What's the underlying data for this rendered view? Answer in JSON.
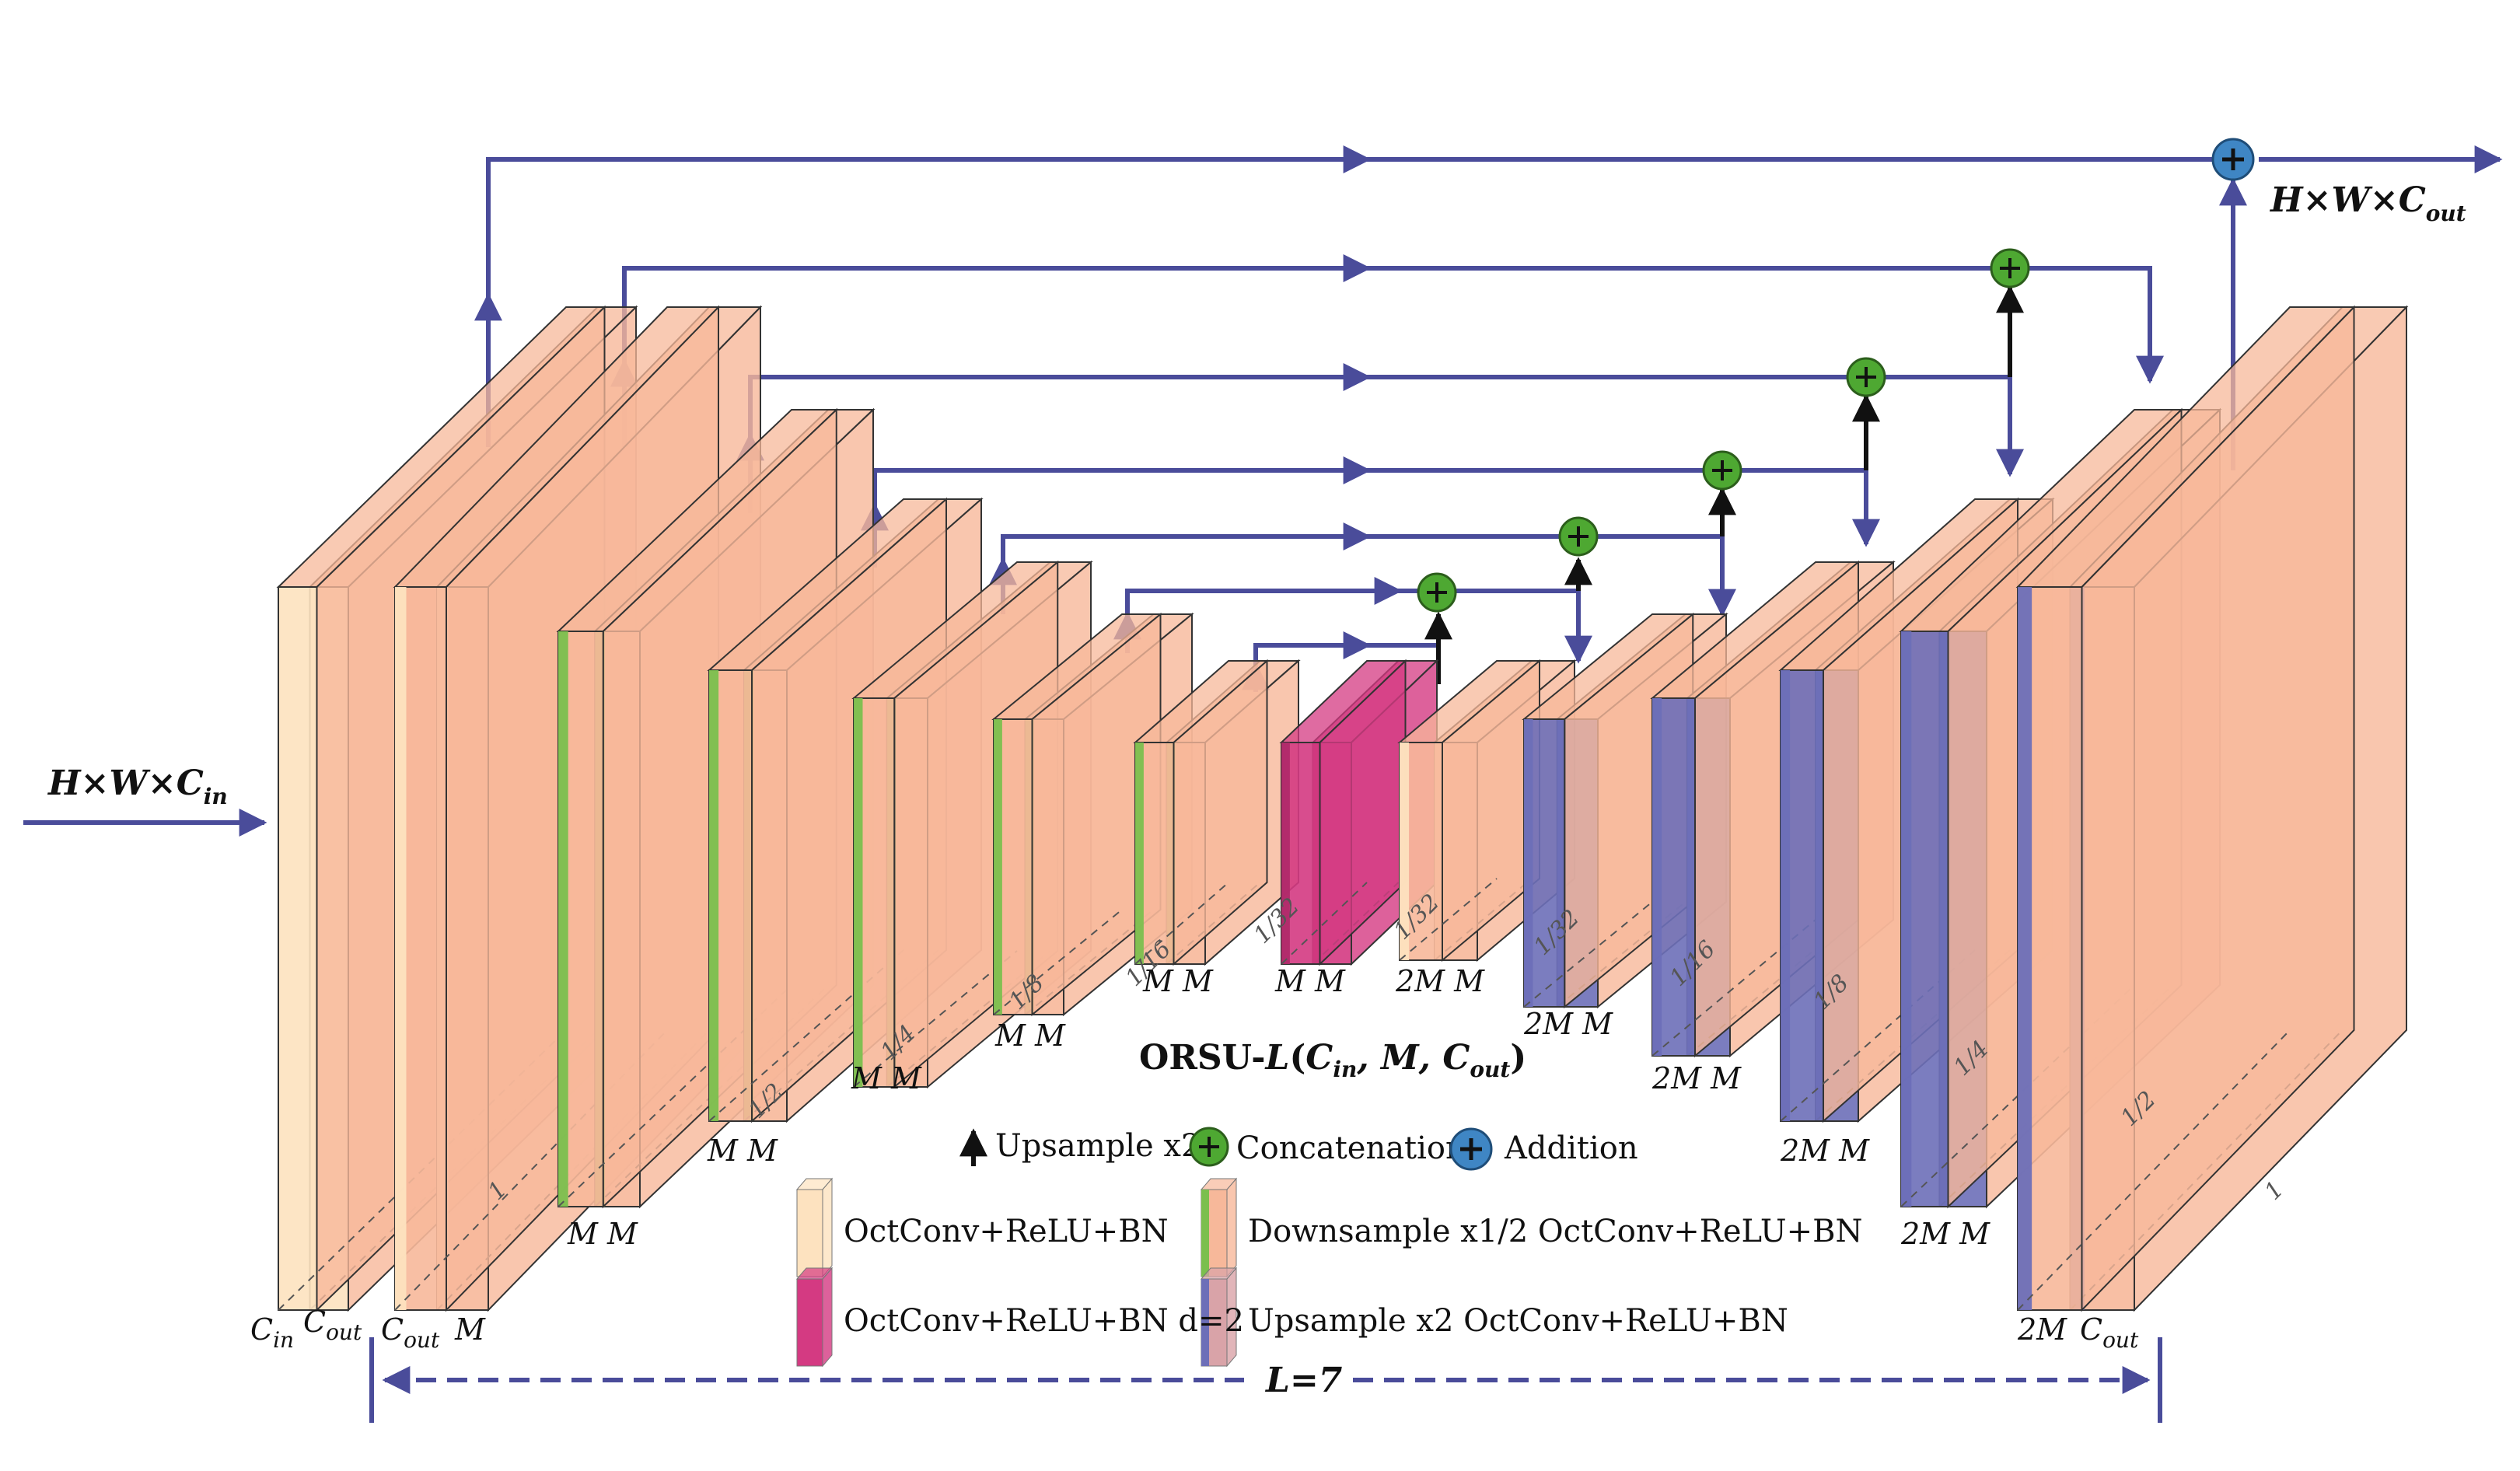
{
  "input_label": {
    "main": "H×W×C",
    "sub": "in"
  },
  "output_label": {
    "main": "H×W×C",
    "sub": "out"
  },
  "title": {
    "prefix": "ORSU-",
    "L": "L",
    "args_open": "(",
    "cin": "C",
    "cin_sub": "in",
    "m": ", M, ",
    "cout": "C",
    "cout_sub": "out",
    "args_close": ")"
  },
  "span_label": "L=7",
  "layer_labels": {
    "in0_a": "C",
    "in0_a_sub": "in",
    "in0_b": "C",
    "in0_b_sub": "out",
    "in1_a": "C",
    "in1_a_sub": "out",
    "in1_b": "M",
    "e1": "M M",
    "e2": "M M",
    "e3": "M M",
    "e4": "M M",
    "e5": "M M",
    "bott": "M M",
    "d5": "2M M",
    "d4": "2M M",
    "d3": "2M M",
    "d2": "2M M",
    "d1": "2M M",
    "out_a": "2M",
    "out_b": "C",
    "out_b_sub": "out"
  },
  "scales": {
    "s1": "1",
    "s2": "1/2",
    "s4": "1/4",
    "s8": "1/8",
    "s16": "1/16",
    "s32": "1/32"
  },
  "legend": {
    "upsample": "Upsample x2",
    "concat": "Concatenation",
    "addition": "Addition",
    "octconv": "OctConv+ReLU+BN",
    "downsample": "Downsample x1/2 OctConv+ReLU+BN",
    "dilated": "OctConv+ReLU+BN d=2",
    "upconv": "Upsample x2 OctConv+ReLU+BN"
  },
  "colors": {
    "arrow": "#4a4c9a",
    "peach": "#f7b89a",
    "cream": "#fde2bf",
    "green": "#7bbf4e",
    "magenta": "#d43a82",
    "purple": "#6d6fb8",
    "concat_node": "#4ea832",
    "add_node": "#3f86c4"
  }
}
